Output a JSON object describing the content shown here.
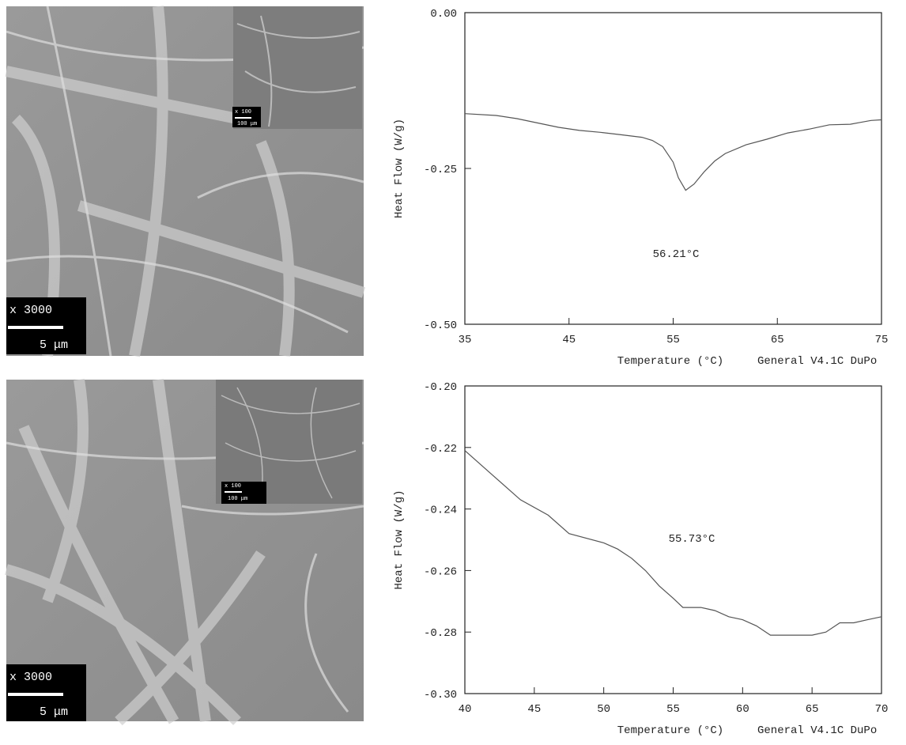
{
  "images": [
    {
      "magnification": "x 3000",
      "scale": "5 μm",
      "inset_magnification": "x 100",
      "inset_scale": "100 μm"
    },
    {
      "magnification": "x 3000",
      "scale": "5 μm",
      "inset_magnification": "x 100",
      "inset_scale": "100 μm"
    }
  ],
  "chart_data": [
    {
      "type": "line",
      "ylabel": "Heat Flow (W/g)",
      "xlabel": "Temperature (°C)",
      "footer": "General V4.1C DuPo",
      "annotation": "56.21°C",
      "xlim": [
        35,
        75
      ],
      "xticks": [
        35,
        45,
        55,
        65,
        75
      ],
      "ylim": [
        -0.5,
        0
      ],
      "yticks": [
        {
          "value": 0,
          "label": "0.00"
        },
        {
          "value": -0.25,
          "label": "-0.25"
        },
        {
          "value": -0.5,
          "label": "-0.50"
        }
      ],
      "color": "#555555",
      "x": [
        35,
        38,
        40,
        42,
        44,
        46,
        48,
        50,
        52,
        53,
        54,
        55,
        55.5,
        56.2,
        57,
        58,
        59,
        60,
        62,
        64,
        66,
        68,
        70,
        72,
        73,
        74,
        75
      ],
      "values": [
        -0.162,
        -0.165,
        -0.17,
        -0.177,
        -0.184,
        -0.189,
        -0.192,
        -0.196,
        -0.2,
        -0.205,
        -0.215,
        -0.24,
        -0.265,
        -0.285,
        -0.275,
        -0.255,
        -0.238,
        -0.226,
        -0.212,
        -0.203,
        -0.193,
        -0.187,
        -0.18,
        -0.179,
        -0.176,
        -0.173,
        -0.172
      ]
    },
    {
      "type": "line",
      "ylabel": "Heat Flow (W/g)",
      "xlabel": "Temperature (°C)",
      "footer": "General V4.1C DuPo",
      "annotation": "55.73°C",
      "xlim": [
        40,
        70
      ],
      "xticks": [
        40,
        45,
        50,
        55,
        60,
        65,
        70
      ],
      "ylim": [
        -0.3,
        -0.2
      ],
      "yticks": [
        {
          "value": -0.2,
          "label": "-0.20"
        },
        {
          "value": -0.22,
          "label": "-0.22"
        },
        {
          "value": -0.24,
          "label": "-0.24"
        },
        {
          "value": -0.26,
          "label": "-0.26"
        },
        {
          "value": -0.28,
          "label": "-0.28"
        },
        {
          "value": -0.3,
          "label": "-0.30"
        }
      ],
      "color": "#555555",
      "x": [
        40,
        42,
        44,
        46,
        47.5,
        50,
        51,
        52,
        53,
        54,
        55,
        55.7,
        56,
        57,
        58,
        59,
        60,
        61,
        62,
        63,
        64,
        65,
        66,
        67,
        68,
        69,
        70
      ],
      "values": [
        -0.221,
        -0.229,
        -0.237,
        -0.242,
        -0.248,
        -0.251,
        -0.253,
        -0.256,
        -0.26,
        -0.265,
        -0.269,
        -0.272,
        -0.272,
        -0.272,
        -0.273,
        -0.275,
        -0.276,
        -0.278,
        -0.281,
        -0.281,
        -0.281,
        -0.281,
        -0.28,
        -0.277,
        -0.277,
        -0.276,
        -0.275
      ]
    }
  ]
}
